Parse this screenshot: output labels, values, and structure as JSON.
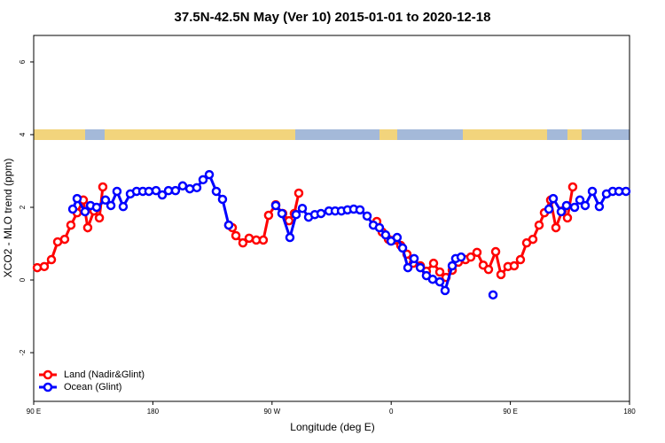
{
  "chart_data": {
    "type": "line",
    "title": "37.5N-42.5N May (Ver 10)   2015-01-01 to 2020-12-18",
    "x_label": "Longitude (deg E)",
    "y_label": "XCO2 - MLO trend (ppm)",
    "xlim": [
      90,
      540
    ],
    "ylim": [
      -3.34,
      6.73
    ],
    "xticks": [
      {
        "value": 90,
        "label": "90 E"
      },
      180,
      {
        "value": 270,
        "label": "90 W"
      },
      {
        "value": 360,
        "label": "0"
      },
      {
        "value": 450,
        "label": "90 E"
      },
      {
        "value": 540,
        "label": "180"
      }
    ],
    "yticks": [
      -2,
      0,
      2,
      4,
      6
    ],
    "legend": "bottom-left",
    "series": [
      {
        "name": "Land (Nadir&Glint)",
        "color": "#ff0000",
        "x": [
          92.7,
          98.0,
          103.4,
          108.1,
          113.4,
          118.1,
          122.8,
          127.5,
          130.8,
          135.5,
          139.6,
          142.2,
          null,
          237.3,
          240.0,
          242.7,
          248.0,
          252.7,
          258.1,
          263.4,
          267.4,
          272.8,
          278.1,
          282.8,
          286.8,
          290.2,
          null,
          349.1,
          353.2,
          357.9,
          362.5,
          367.2,
          371.9,
          376.6,
          382.0,
          386.6,
          392.0,
          396.7,
          401.4,
          406.1,
          410.7,
          416.1,
          420.1,
          424.8,
          429.5,
          433.5,
          438.9,
          442.9,
          448.2,
          452.9,
          457.6,
          462.3,
          467.0,
          471.7,
          475.7,
          480.4,
          484.4,
          489.1,
          493.1,
          497.1
        ],
        "values": [
          0.34,
          0.37,
          0.56,
          1.05,
          1.12,
          1.51,
          1.85,
          2.2,
          1.44,
          1.9,
          1.71,
          2.56,
          null,
          1.51,
          1.44,
          1.22,
          1.02,
          1.15,
          1.1,
          1.1,
          1.78,
          2.07,
          1.83,
          1.63,
          1.83,
          2.39,
          null,
          1.61,
          1.32,
          1.12,
          1.1,
          0.95,
          0.71,
          0.46,
          0.39,
          0.24,
          0.46,
          0.22,
          0.07,
          0.27,
          0.49,
          0.56,
          0.63,
          0.76,
          0.41,
          0.29,
          0.78,
          0.15,
          0.37,
          0.39,
          0.56,
          1.02,
          1.12,
          1.51,
          1.85,
          2.2,
          1.44,
          1.9,
          1.71,
          2.56
        ]
      },
      {
        "name": "Ocean (Glint)",
        "color": "#0000ff",
        "x": [
          119.5,
          122.8,
          128.8,
          132.9,
          137.5,
          144.2,
          148.3,
          152.9,
          157.6,
          163.0,
          167.7,
          172.4,
          177.0,
          182.4,
          187.1,
          191.8,
          197.1,
          202.5,
          207.9,
          213.2,
          217.9,
          222.6,
          227.9,
          232.6,
          237.3,
          null,
          272.8,
          277.5,
          283.5,
          288.2,
          292.9,
          297.6,
          302.3,
          307.0,
          313.0,
          317.7,
          322.4,
          327.0,
          331.7,
          336.4,
          341.8,
          346.5,
          351.1,
          355.8,
          359.9,
          364.5,
          368.6,
          372.6,
          377.3,
          382.0,
          386.6,
          391.3,
          396.7,
          400.7,
          406.1,
          408.7,
          412.8,
          null,
          436.9,
          null,
          479.1,
          482.4,
          488.4,
          492.4,
          498.5,
          502.5,
          506.5,
          511.9,
          517.2,
          522.6,
          527.3,
          532.0,
          537.3
        ],
        "values": [
          1.95,
          2.24,
          1.88,
          2.05,
          2.0,
          2.2,
          2.05,
          2.44,
          2.02,
          2.37,
          2.44,
          2.44,
          2.44,
          2.46,
          2.34,
          2.46,
          2.46,
          2.59,
          2.51,
          2.54,
          2.76,
          2.9,
          2.44,
          2.22,
          1.51,
          null,
          2.05,
          1.83,
          1.17,
          1.8,
          1.97,
          1.73,
          1.8,
          1.83,
          1.9,
          1.9,
          1.9,
          1.93,
          1.95,
          1.93,
          1.76,
          1.51,
          1.44,
          1.24,
          1.07,
          1.17,
          0.88,
          0.34,
          0.59,
          0.34,
          0.12,
          0.02,
          -0.05,
          -0.29,
          0.39,
          0.59,
          0.63,
          null,
          -0.41,
          null,
          1.95,
          2.24,
          1.88,
          2.05,
          2.0,
          2.2,
          2.05,
          2.44,
          2.02,
          2.37,
          2.44,
          2.44,
          2.44
        ]
      }
    ]
  }
}
